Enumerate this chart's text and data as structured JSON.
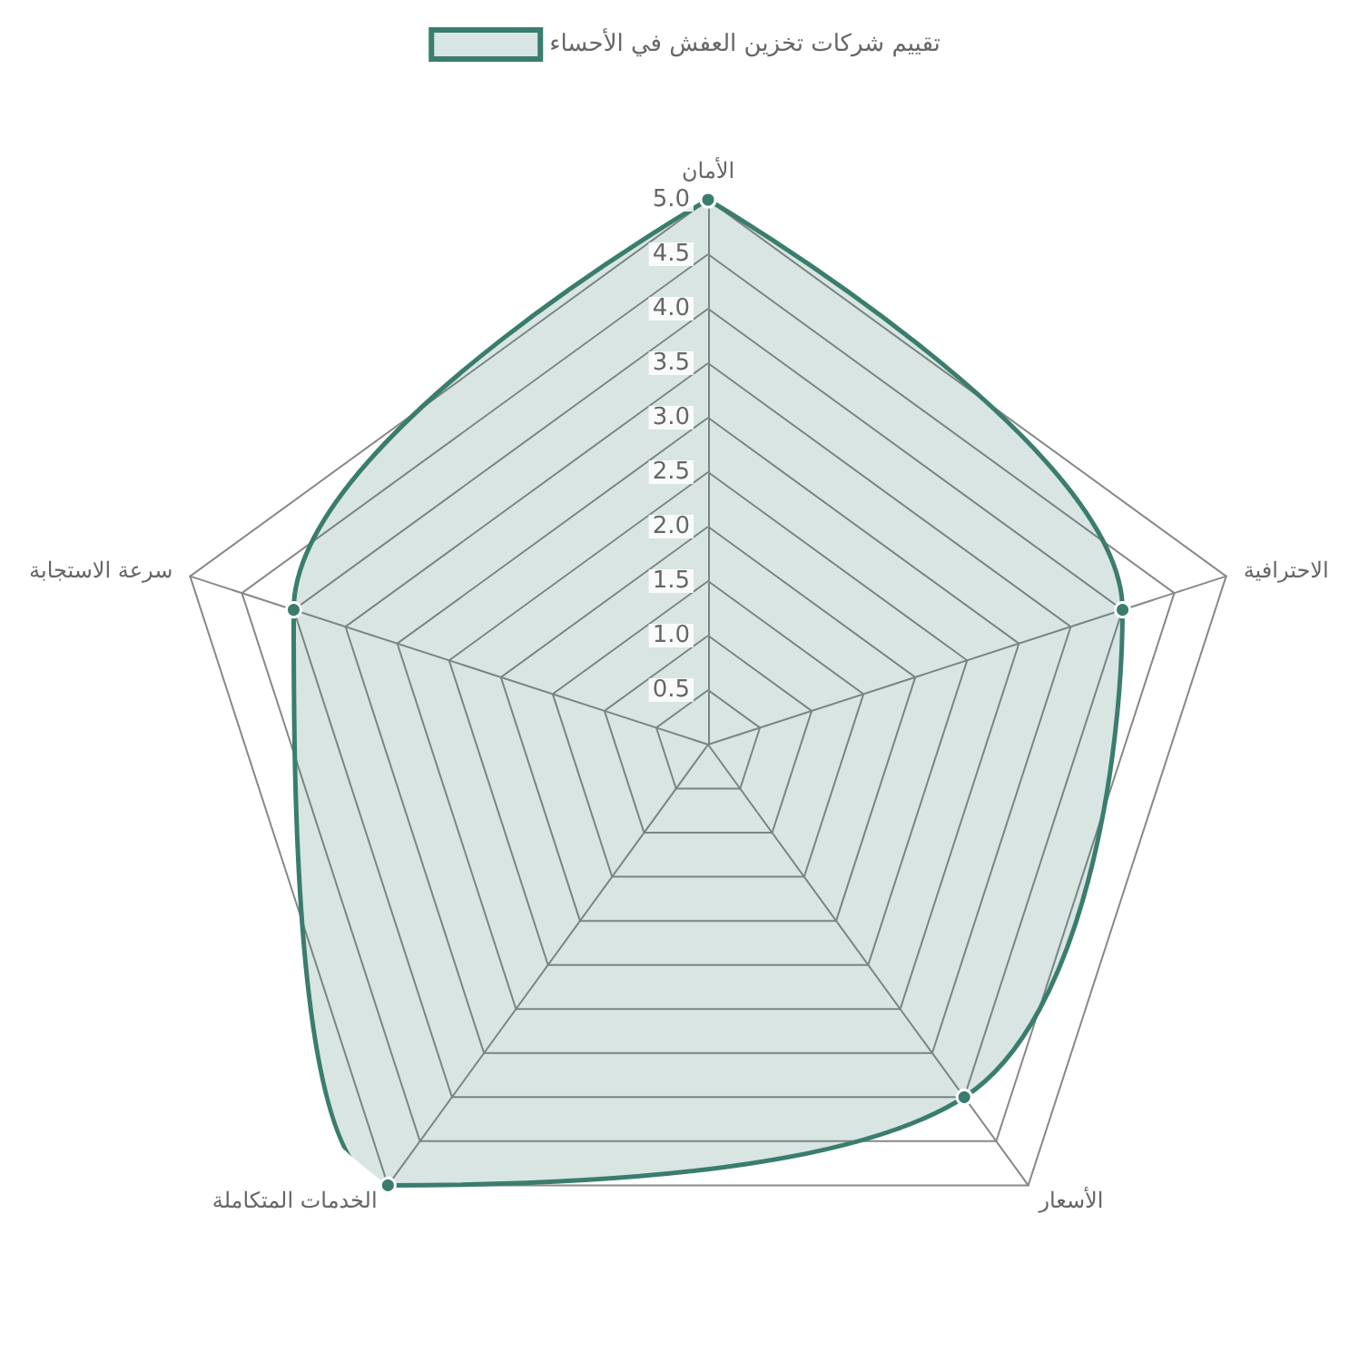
{
  "chart_data": {
    "type": "radar",
    "categories": [
      "الأمان",
      "الاحترافية",
      "الأسعار",
      "الخدمات المتكاملة",
      "سرعة الاستجابة"
    ],
    "series": [
      {
        "name": "تقييم شركات تخزين العفش في الأحساء",
        "color": "#3a7d6e",
        "values": [
          5.0,
          4.0,
          4.0,
          5.0,
          4.0
        ]
      }
    ],
    "ylim": [
      0,
      5
    ],
    "yticks": [
      0.5,
      {
        "value": 1,
        "label": "1.0"
      },
      1.5,
      {
        "value": 2,
        "label": "2.0"
      },
      2.5,
      {
        "value": 3,
        "label": "3.0"
      },
      3.5,
      {
        "value": 4,
        "label": "4.0"
      },
      4.5,
      {
        "value": 5,
        "label": "5.0"
      }
    ],
    "legend": "top",
    "marker": "circle",
    "grid": true
  }
}
